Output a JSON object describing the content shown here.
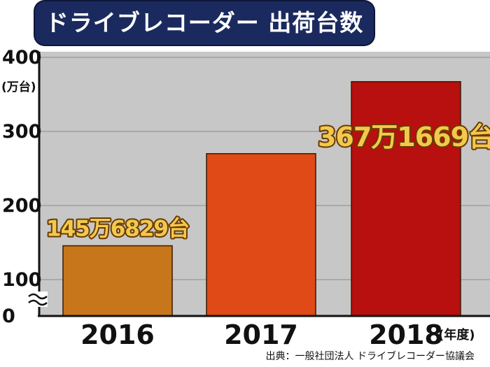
{
  "chart_data": {
    "type": "bar",
    "title": "ドライブレコーダー 出荷台数",
    "categories": [
      "2016",
      "2017",
      "2018"
    ],
    "values": [
      145.6829,
      270,
      367.1669
    ],
    "ylim": [
      0,
      400
    ],
    "y_axis_break": true,
    "yticks": [
      0,
      100,
      200,
      300,
      400
    ],
    "ytick_labels": [
      "0",
      "100",
      "200",
      "300",
      "400"
    ],
    "yunit": "(万台)",
    "xunit": "(年度)",
    "grid": true,
    "bar_colors": [
      "#c8761b",
      "#df4a17",
      "#b80f0f"
    ],
    "data_labels": [
      {
        "index": 0,
        "text": "145万6829台"
      },
      {
        "index": 2,
        "text": "367万1669台"
      }
    ],
    "source": "出典：一般社団法人 ドライブレコーダー協議会"
  },
  "colors": {
    "plot_background": "#c7c7c7",
    "grid": "#a9a9a9",
    "title_banner": "#1b2a5e",
    "data_label_text": "#f2c94c",
    "data_label_outline": "#6a3a00"
  }
}
